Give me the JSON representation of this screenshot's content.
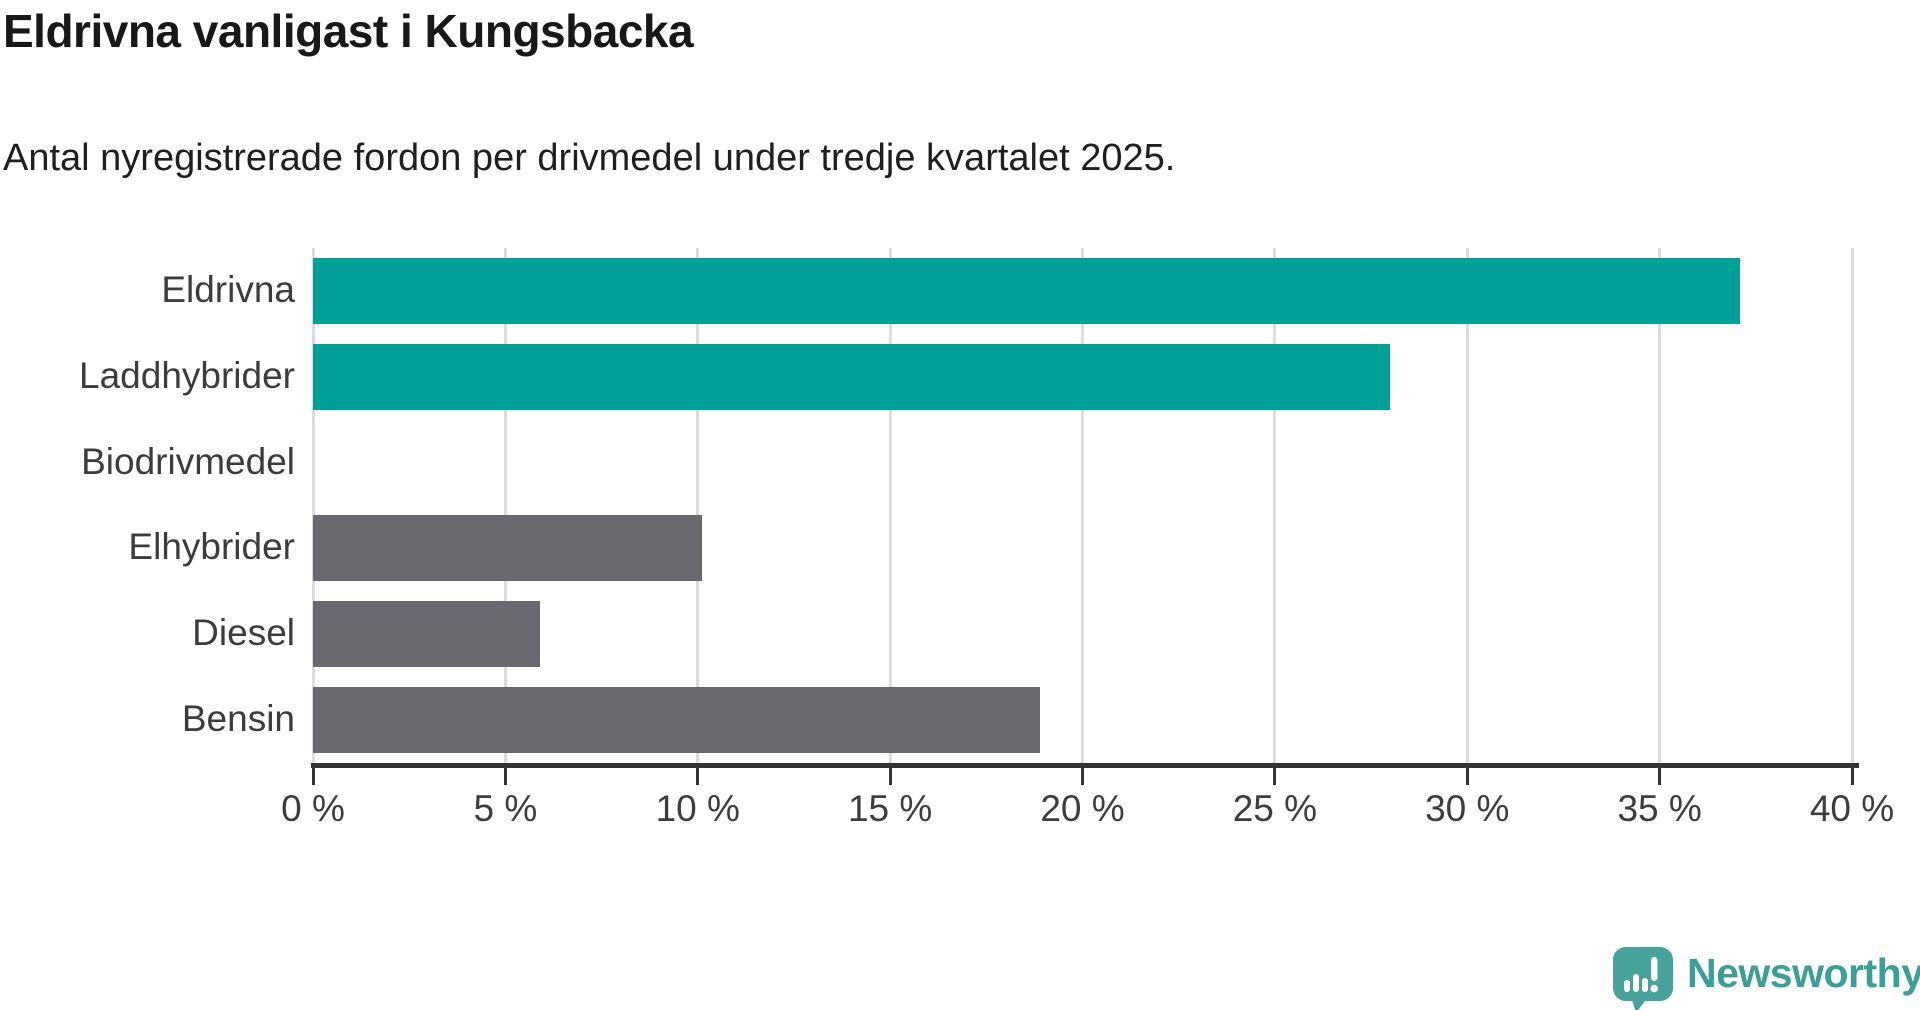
{
  "header": {
    "title": "Eldrivna vanligast i Kungsbacka",
    "subtitle": "Antal nyregistrerade fordon per drivmedel under tredje kvartalet 2025."
  },
  "chart_data": {
    "type": "bar",
    "orientation": "horizontal",
    "title": "Eldrivna vanligast i Kungsbacka",
    "subtitle": "Antal nyregistrerade fordon per drivmedel under tredje kvartalet 2025.",
    "categories": [
      "Eldrivna",
      "Laddhybrider",
      "Biodrivmedel",
      "Elhybrider",
      "Diesel",
      "Bensin"
    ],
    "values": [
      37.1,
      28.0,
      0,
      10.1,
      5.9,
      18.9
    ],
    "unit": "%",
    "xlabel": "",
    "ylabel": "",
    "xlim": [
      0,
      40
    ],
    "xtick_values": [
      0,
      5,
      10,
      15,
      20,
      25,
      30,
      35,
      40
    ],
    "xtick_labels": [
      "0 %",
      "5 %",
      "10 %",
      "15 %",
      "20 %",
      "25 %",
      "30 %",
      "35 %",
      "40 %"
    ],
    "grid": "vertical-only",
    "legend": "none",
    "bar_colors": [
      "#00a098",
      "#00a098",
      "#6b6970",
      "#6b6970",
      "#6b6970",
      "#6b6970"
    ],
    "colors": {
      "highlight": "#00a098",
      "muted": "#6b6970",
      "gridline": "#dcdcde",
      "axis": "#333333",
      "text": "#3c3c3c"
    }
  },
  "branding": {
    "logo_text": "Newsworthy",
    "logo_color": "#3b9e99",
    "logo_icon": "newsworthy-speech-bubble-chart-icon",
    "logo_icon_color": "#47a29c"
  }
}
